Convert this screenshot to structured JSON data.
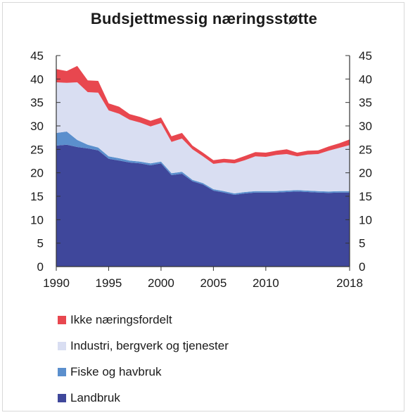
{
  "title": "Budsjettmessig næringsstøtte",
  "chart_data": {
    "type": "area",
    "stacked": true,
    "title": "Budsjettmessig næringsstøtte",
    "x": [
      1990,
      1991,
      1992,
      1993,
      1994,
      1995,
      1996,
      1997,
      1998,
      1999,
      2000,
      2001,
      2002,
      2003,
      2004,
      2005,
      2006,
      2007,
      2008,
      2009,
      2010,
      2011,
      2012,
      2013,
      2014,
      2015,
      2016,
      2017,
      2018
    ],
    "x_ticks": [
      "1990",
      "1995",
      "2000",
      "2005",
      "2010",
      "2018"
    ],
    "y_ticks": [
      "0",
      "5",
      "10",
      "15",
      "20",
      "25",
      "30",
      "35",
      "40",
      "45"
    ],
    "ylim": [
      0,
      45
    ],
    "xlim": [
      1990,
      2018
    ],
    "series": [
      {
        "name": "Landbruk",
        "color": "#3f479b",
        "values": [
          25.8,
          26.0,
          25.5,
          25.2,
          24.8,
          23.0,
          22.6,
          22.2,
          22.0,
          21.6,
          22.0,
          19.5,
          19.8,
          18.2,
          17.5,
          16.2,
          15.8,
          15.3,
          15.6,
          15.8,
          15.8,
          15.8,
          15.9,
          16.0,
          15.9,
          15.8,
          15.7,
          15.8,
          15.8
        ]
      },
      {
        "name": "Fiske og havbruk",
        "color": "#5b8fcd",
        "values": [
          2.7,
          2.8,
          1.5,
          0.8,
          0.6,
          0.5,
          0.5,
          0.4,
          0.4,
          0.4,
          0.4,
          0.4,
          0.4,
          0.3,
          0.3,
          0.3,
          0.3,
          0.3,
          0.3,
          0.3,
          0.3,
          0.3,
          0.3,
          0.3,
          0.3,
          0.3,
          0.3,
          0.3,
          0.3
        ]
      },
      {
        "name": "Industri, bergverk og tjenester",
        "color": "#d9def2",
        "values": [
          10.8,
          10.4,
          12.3,
          11.2,
          11.7,
          9.8,
          9.5,
          8.7,
          8.3,
          7.9,
          8.2,
          6.7,
          7.1,
          6.5,
          5.7,
          5.4,
          6.1,
          6.4,
          6.8,
          7.4,
          7.3,
          7.7,
          7.8,
          7.2,
          7.7,
          7.9,
          8.7,
          9.2,
          9.8
        ]
      },
      {
        "name": "Ikke næringsfordelt",
        "color": "#e8474f",
        "values": [
          2.8,
          2.5,
          3.5,
          2.5,
          2.5,
          1.5,
          1.5,
          1.2,
          1.2,
          1.2,
          1.2,
          1.2,
          1.2,
          0.8,
          0.8,
          0.8,
          0.8,
          0.8,
          0.9,
          0.9,
          0.9,
          0.9,
          1.0,
          0.8,
          0.8,
          0.8,
          0.9,
          1.0,
          1.2
        ]
      }
    ],
    "legend": [
      {
        "label": "Ikke næringsfordelt",
        "color": "#e8474f"
      },
      {
        "label": "Industri, bergverk og tjenester",
        "color": "#d9def2"
      },
      {
        "label": "Fiske og havbruk",
        "color": "#5b8fcd"
      },
      {
        "label": "Landbruk",
        "color": "#3f479b"
      }
    ]
  }
}
